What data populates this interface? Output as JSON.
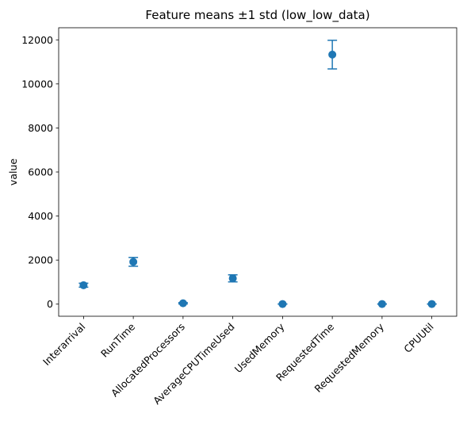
{
  "chart_data": {
    "type": "scatter",
    "title": "Feature means ±1 std (low_low_data)",
    "xlabel": "",
    "ylabel": "value",
    "categories": [
      "Interarrival",
      "RunTime",
      "AllocatedProcessors",
      "AverageCPUTimeUsed",
      "UsedMemory",
      "RequestedTime",
      "RequestedMemory",
      "CPUUtil"
    ],
    "series": [
      {
        "means": [
          860,
          1920,
          40,
          1170,
          5,
          11330,
          5,
          5
        ],
        "stds": [
          90,
          200,
          30,
          160,
          5,
          650,
          5,
          5
        ]
      }
    ],
    "ylim": [
      -550,
      12550
    ],
    "yticks": [
      0,
      2000,
      4000,
      6000,
      8000,
      10000,
      12000
    ],
    "grid": false,
    "legend": "none",
    "color": "#1f77b4"
  }
}
